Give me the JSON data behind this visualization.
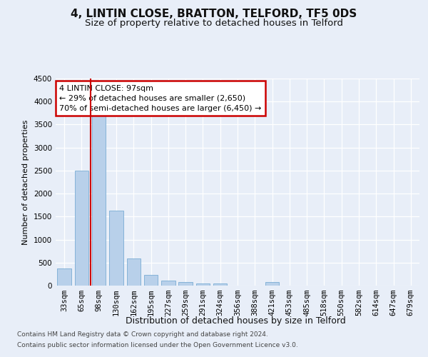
{
  "title": "4, LINTIN CLOSE, BRATTON, TELFORD, TF5 0DS",
  "subtitle": "Size of property relative to detached houses in Telford",
  "xlabel": "Distribution of detached houses by size in Telford",
  "ylabel": "Number of detached properties",
  "categories": [
    "33sqm",
    "65sqm",
    "98sqm",
    "130sqm",
    "162sqm",
    "195sqm",
    "227sqm",
    "259sqm",
    "291sqm",
    "324sqm",
    "356sqm",
    "388sqm",
    "421sqm",
    "453sqm",
    "485sqm",
    "518sqm",
    "550sqm",
    "582sqm",
    "614sqm",
    "647sqm",
    "679sqm"
  ],
  "values": [
    370,
    2500,
    3720,
    1630,
    590,
    230,
    110,
    70,
    50,
    40,
    0,
    0,
    70,
    0,
    0,
    0,
    0,
    0,
    0,
    0,
    0
  ],
  "bar_color": "#b8d0ea",
  "bar_edge_color": "#7aacd4",
  "highlight_line_color": "#cc0000",
  "highlight_index": 2,
  "annotation_text": "4 LINTIN CLOSE: 97sqm\n← 29% of detached houses are smaller (2,650)\n70% of semi-detached houses are larger (6,450) →",
  "annotation_box_color": "#ffffff",
  "annotation_box_edge": "#cc0000",
  "ylim": [
    0,
    4500
  ],
  "yticks": [
    0,
    500,
    1000,
    1500,
    2000,
    2500,
    3000,
    3500,
    4000,
    4500
  ],
  "footer_line1": "Contains HM Land Registry data © Crown copyright and database right 2024.",
  "footer_line2": "Contains public sector information licensed under the Open Government Licence v3.0.",
  "background_color": "#e8eef8",
  "plot_bg_color": "#e8eef8",
  "grid_color": "#ffffff",
  "title_fontsize": 11,
  "subtitle_fontsize": 9.5,
  "xlabel_fontsize": 9,
  "ylabel_fontsize": 8,
  "tick_fontsize": 7.5
}
